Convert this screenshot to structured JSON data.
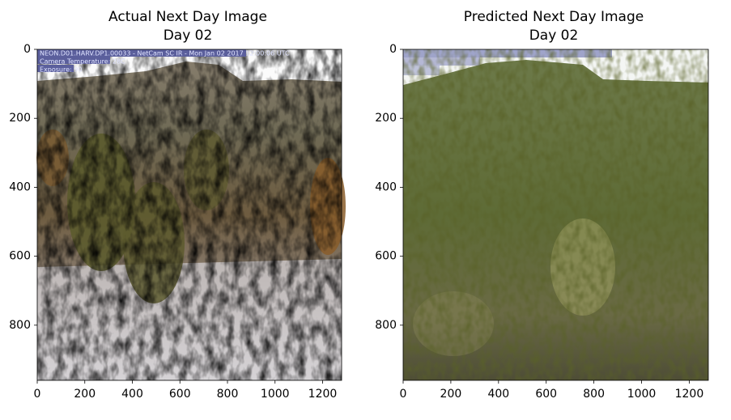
{
  "chart_data": [
    {
      "type": "image",
      "title": "Actual Next Day Image",
      "subtitle": "Day 02",
      "annotations": [
        "NEON.D01.HARV.DP1.00033 - NetCam SC IR - Mon Jan 02 2017 12:00:06 UTC",
        "Camera Temperature: 28C",
        "Exposure: 90"
      ],
      "xlim": [
        0,
        1280
      ],
      "ylim": [
        960,
        0
      ],
      "xticks": [
        0,
        200,
        400,
        600,
        800,
        1000,
        1200
      ],
      "yticks": [
        0,
        200,
        400,
        600,
        800
      ]
    },
    {
      "type": "image",
      "title": "Predicted Next Day Image",
      "subtitle": "Day 02",
      "xlim": [
        0,
        1280
      ],
      "ylim": [
        960,
        0
      ],
      "xticks": [
        0,
        200,
        400,
        600,
        800,
        1000,
        1200
      ],
      "yticks": [
        0,
        200,
        400,
        600,
        800
      ]
    }
  ]
}
